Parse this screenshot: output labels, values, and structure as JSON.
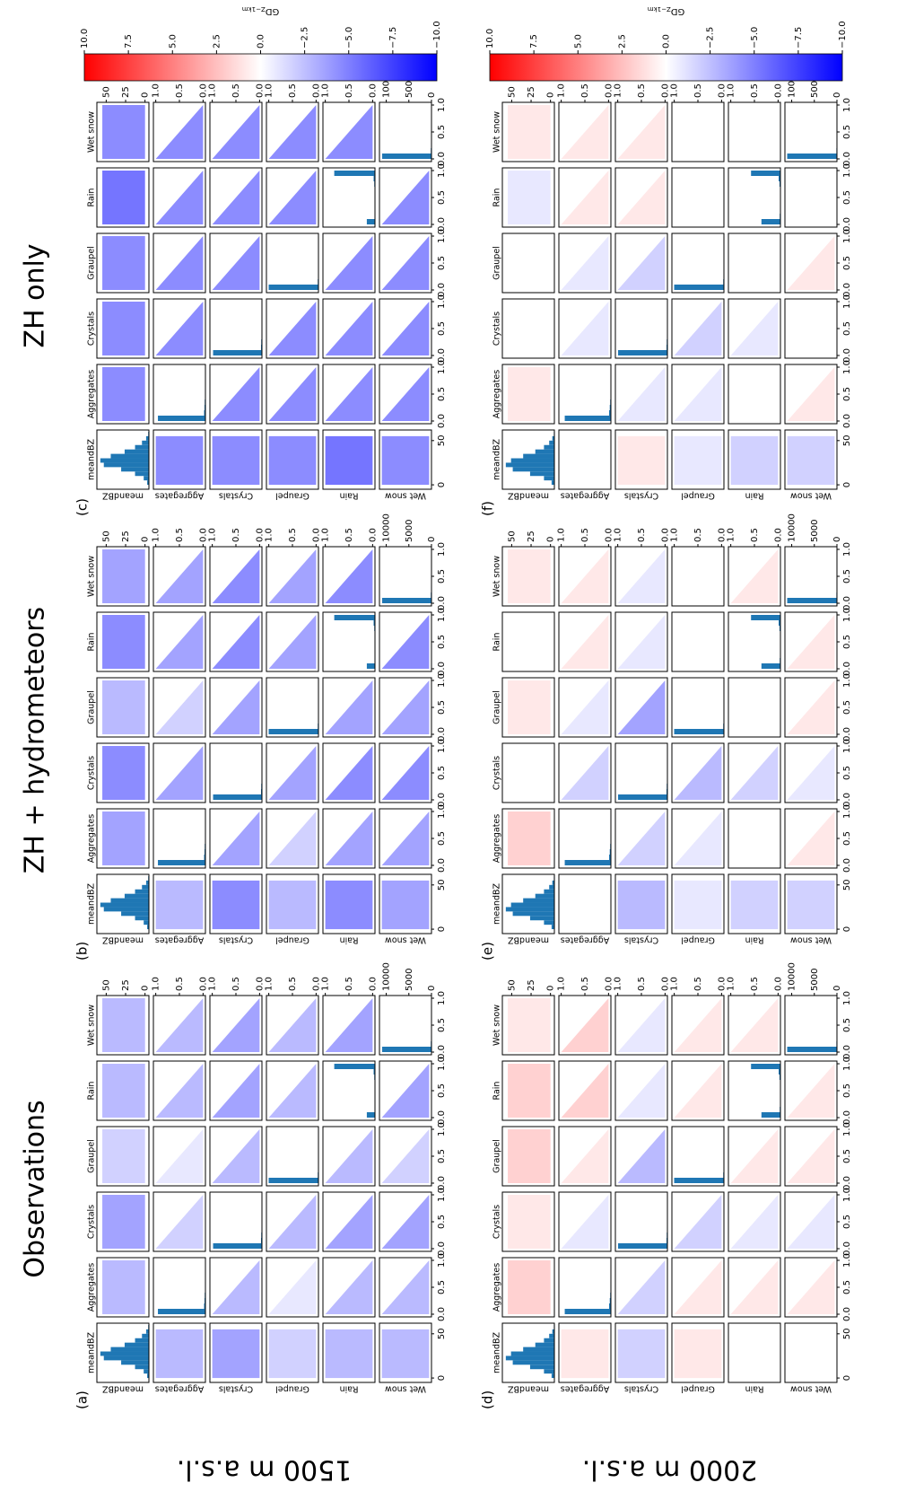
{
  "chart_data": {
    "type": "pairplot-heatmap",
    "titles": [
      "Observations",
      "ZH + hydrometeors",
      "ZH only"
    ],
    "row_labels": [
      "1500 m a.s.l.",
      "2000 m a.s.l."
    ],
    "variables": [
      "meandBZ",
      "Aggregates",
      "Crystals",
      "Graupel",
      "Rain",
      "Wet snow"
    ],
    "dbz_lim": [
      -5,
      62
    ],
    "dbz_xticks": [
      0,
      50
    ],
    "dbz_yticks": [
      0,
      25,
      50
    ],
    "frac_lim": [
      -0.05,
      1.05
    ],
    "frac_ticks": [
      {
        "value": 0,
        "label": "0.0"
      },
      {
        "value": 0.5,
        "label": "0.5"
      },
      {
        "value": 1,
        "label": "1.0"
      }
    ],
    "count_lim": [
      0,
      11500
    ],
    "count_ticks": [
      0,
      5000,
      10000
    ],
    "dbz_count_lim": [
      0,
      1500
    ],
    "heatmap_dbz_extent": [
      0,
      55
    ],
    "heatmap_frac_extent": [
      0,
      1
    ],
    "hist_color": "#1f77b4",
    "dbz_bins": [
      0,
      5,
      10,
      15,
      20,
      25,
      30,
      35,
      40,
      45,
      50,
      55,
      60
    ],
    "frac_bins": [
      0,
      0.1,
      0.2,
      0.3,
      0.4,
      0.5,
      0.6,
      0.7,
      0.8,
      0.9,
      1.0
    ],
    "histograms": [
      {
        "dbz_counts": [
          50,
          150,
          400,
          800,
          1300,
          1400,
          1100,
          700,
          400,
          200,
          80,
          20
        ],
        "frac_counts": [
          [
            10500,
            300,
            200,
            150,
            100,
            100,
            80,
            60,
            50,
            40
          ],
          [
            10800,
            200,
            150,
            100,
            80,
            60,
            50,
            40,
            30,
            20
          ],
          [
            11000,
            150,
            100,
            80,
            60,
            50,
            40,
            30,
            20,
            10
          ],
          [
            1800,
            100,
            80,
            60,
            50,
            60,
            80,
            150,
            300,
            9000
          ],
          [
            10900,
            150,
            100,
            80,
            60,
            50,
            40,
            30,
            20,
            10
          ]
        ]
      },
      {
        "dbz_counts": [
          80,
          300,
          700,
          1200,
          1400,
          1250,
          900,
          550,
          300,
          150,
          60,
          15
        ],
        "frac_counts": [
          [
            10200,
            400,
            250,
            150,
            100,
            100,
            80,
            60,
            50,
            40
          ],
          [
            10900,
            200,
            150,
            100,
            80,
            60,
            50,
            40,
            30,
            20
          ],
          [
            11000,
            150,
            100,
            80,
            60,
            50,
            40,
            30,
            20,
            10
          ],
          [
            4200,
            150,
            100,
            80,
            70,
            80,
            100,
            200,
            400,
            6500
          ],
          [
            11000,
            120,
            90,
            70,
            50,
            40,
            30,
            20,
            15,
            10
          ]
        ]
      }
    ],
    "panels": [
      [
        {
          "label": "(a)",
          "gd": [
            [
              null,
              -3,
              -4,
              -2,
              -3,
              -3
            ],
            [
              -3,
              null,
              -2,
              -1,
              -3,
              -3
            ],
            [
              -4,
              -3,
              null,
              -3,
              -4,
              -4
            ],
            [
              -2,
              -1,
              -3,
              null,
              -3,
              -3
            ],
            [
              -3,
              -3,
              -4,
              -3,
              null,
              -4
            ],
            [
              -3,
              -3,
              -4,
              -2,
              -4,
              null
            ]
          ]
        },
        {
          "label": "(b)",
          "gd": [
            [
              null,
              -4,
              -5,
              -3,
              -5,
              -4
            ],
            [
              -3,
              null,
              -4,
              -2,
              -4,
              -4
            ],
            [
              -5,
              -4,
              null,
              -4,
              -5,
              -5
            ],
            [
              -3,
              -2,
              -4,
              null,
              -4,
              -4
            ],
            [
              -5,
              -4,
              -5,
              -4,
              null,
              -5
            ],
            [
              -4,
              -4,
              -5,
              -4,
              -5,
              null
            ]
          ]
        },
        {
          "label": "(c)",
          "gd": [
            [
              null,
              -5,
              -5,
              -5,
              -6,
              -5
            ],
            [
              -5,
              null,
              -5,
              -5,
              -5,
              -5
            ],
            [
              -5,
              -5,
              null,
              -5,
              -5,
              -5
            ],
            [
              -5,
              -5,
              -5,
              null,
              -5,
              -5
            ],
            [
              -6,
              -5,
              -5,
              -5,
              null,
              -5
            ],
            [
              -5,
              -5,
              -5,
              -5,
              -5,
              null
            ]
          ]
        }
      ],
      [
        {
          "label": "(d)",
          "gd": [
            [
              null,
              2,
              1,
              2,
              2,
              1
            ],
            [
              1,
              null,
              -1,
              1,
              2,
              2
            ],
            [
              -2,
              -2,
              null,
              -3,
              -1,
              -1
            ],
            [
              1,
              1,
              -2,
              null,
              1,
              1
            ],
            [
              0,
              1,
              -1,
              1,
              null,
              1
            ],
            [
              0,
              1,
              -1,
              1,
              1,
              null
            ]
          ]
        },
        {
          "label": "(e)",
          "gd": [
            [
              null,
              2,
              0,
              1,
              0,
              1
            ],
            [
              0,
              null,
              -2,
              -1,
              1,
              1
            ],
            [
              -3,
              -2,
              null,
              -4,
              -1,
              -1
            ],
            [
              -1,
              -1,
              -3,
              null,
              0,
              0
            ],
            [
              -2,
              0,
              -2,
              0,
              null,
              1
            ],
            [
              -2,
              1,
              -1,
              1,
              1,
              null
            ]
          ]
        },
        {
          "label": "(f)",
          "gd": [
            [
              null,
              1,
              0,
              0,
              -1,
              1
            ],
            [
              0,
              null,
              -1,
              -1,
              1,
              1
            ],
            [
              1,
              -1,
              null,
              -2,
              1,
              1
            ],
            [
              -1,
              -1,
              -2,
              null,
              0,
              0
            ],
            [
              -2,
              0,
              -1,
              0,
              null,
              0
            ],
            [
              -2,
              1,
              0,
              1,
              0,
              null
            ]
          ]
        }
      ]
    ],
    "colorbar": {
      "label": "GD",
      "label_sub": "Z−1km",
      "lim": [
        -10,
        10
      ],
      "ticks": [
        {
          "value": -10,
          "label": "−10.0"
        },
        {
          "value": -7.5,
          "label": "−7.5"
        },
        {
          "value": -5,
          "label": "−5.0"
        },
        {
          "value": -2.5,
          "label": "−2.5"
        },
        {
          "value": 0,
          "label": "0.0"
        },
        2.5,
        {
          "value": 5,
          "label": "5.0"
        },
        7.5,
        {
          "value": 10,
          "label": "10.0"
        }
      ],
      "min_color": "#0000ff",
      "mid_color": "#ffffff",
      "max_color": "#ff0000"
    }
  }
}
